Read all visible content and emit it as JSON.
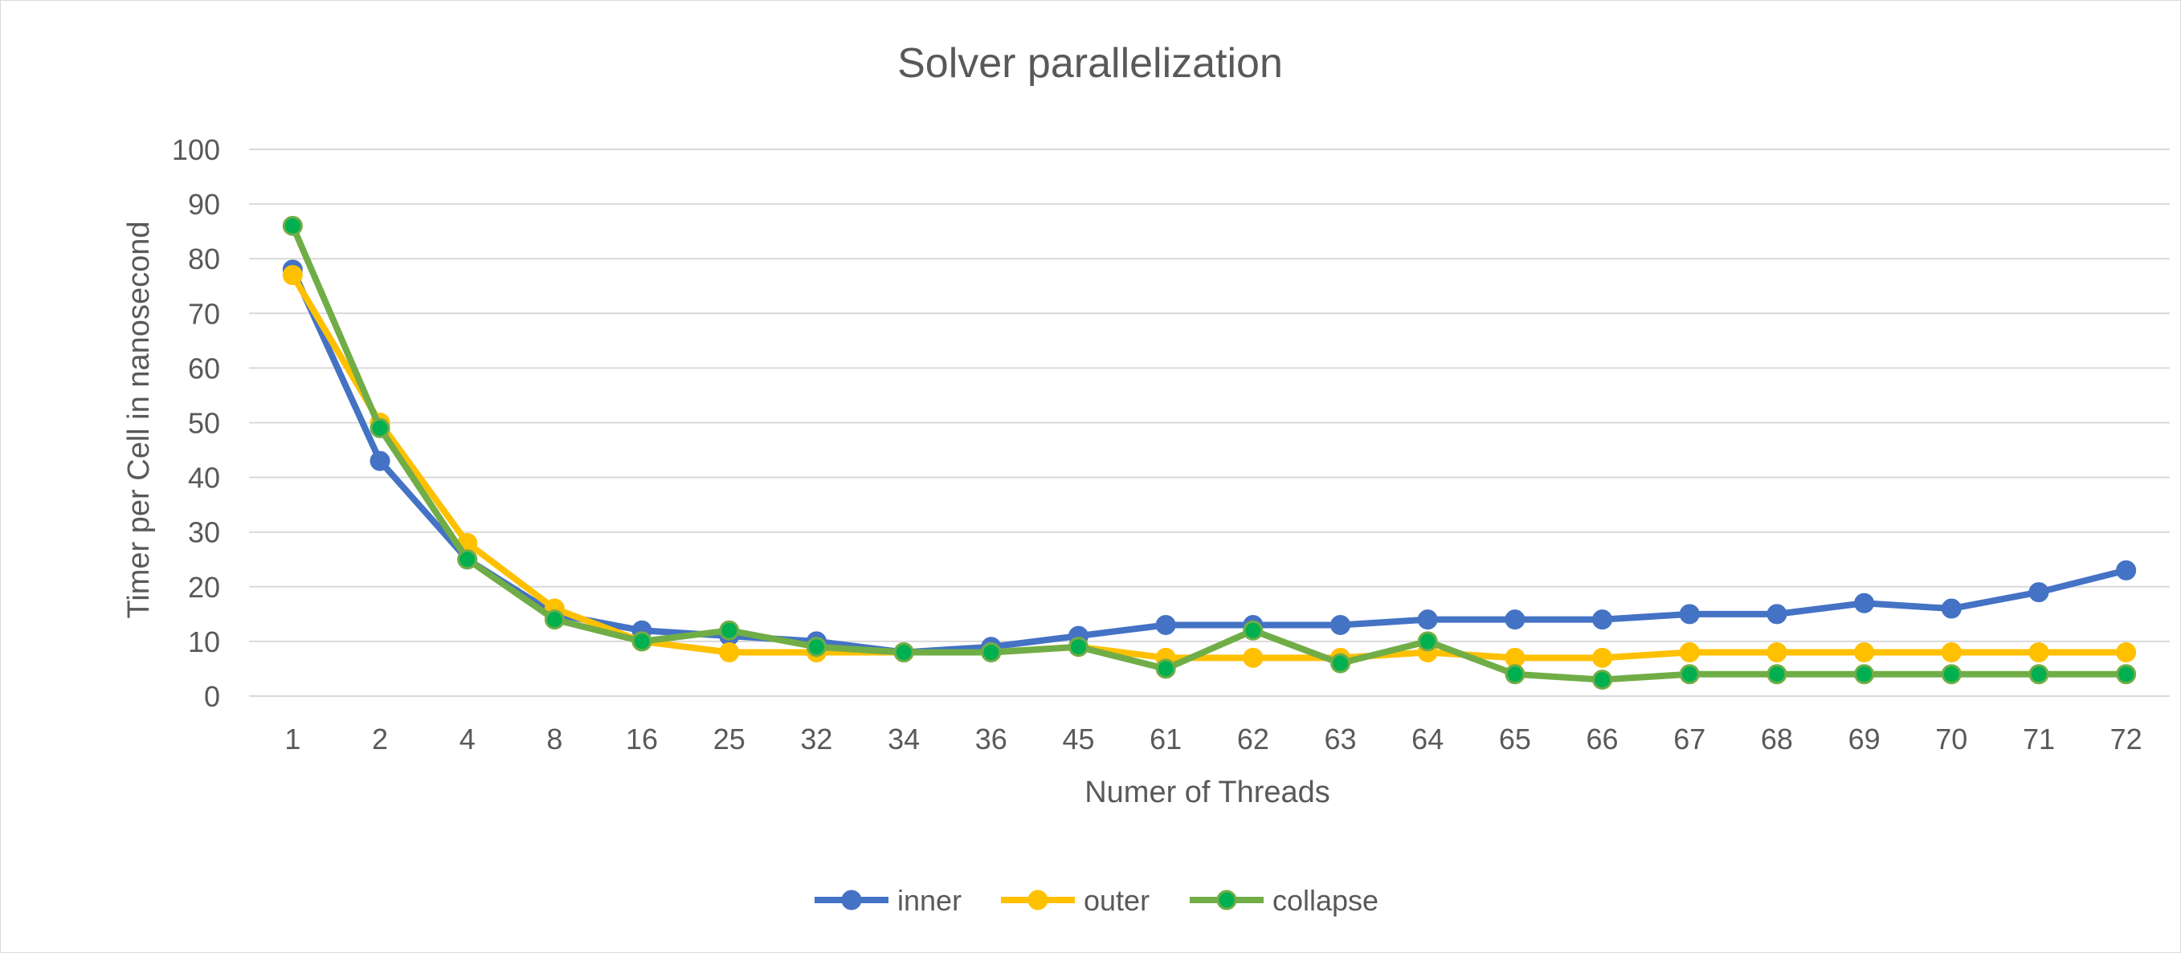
{
  "chart_data": {
    "type": "line",
    "title": "Solver parallelization",
    "xlabel": "Numer of Threads",
    "ylabel": "Timer per Cell in nanosecond",
    "categories": [
      "1",
      "2",
      "4",
      "8",
      "16",
      "25",
      "32",
      "34",
      "36",
      "45",
      "61",
      "62",
      "63",
      "64",
      "65",
      "66",
      "67",
      "68",
      "69",
      "70",
      "71",
      "72"
    ],
    "ylim": [
      0,
      100
    ],
    "yticks": [
      0,
      10,
      20,
      30,
      40,
      50,
      60,
      70,
      80,
      90,
      100
    ],
    "grid": true,
    "legend_position": "bottom",
    "series": [
      {
        "name": "inner",
        "color": "#4472c4",
        "values": [
          78,
          43,
          25,
          15,
          12,
          11,
          10,
          8,
          9,
          11,
          13,
          13,
          13,
          14,
          14,
          14,
          15,
          15,
          17,
          16,
          19,
          23
        ]
      },
      {
        "name": "outer",
        "color": "#ffc000",
        "values": [
          77,
          50,
          28,
          16,
          10,
          8,
          8,
          8,
          8,
          9,
          7,
          7,
          7,
          8,
          7,
          7,
          8,
          8,
          8,
          8,
          8,
          8
        ]
      },
      {
        "name": "collapse",
        "color": "#70ad47",
        "marker_color": "#00b050",
        "values": [
          86,
          49,
          25,
          14,
          10,
          12,
          9,
          8,
          8,
          9,
          5,
          12,
          6,
          10,
          4,
          3,
          4,
          4,
          4,
          4,
          4,
          4
        ]
      }
    ]
  }
}
